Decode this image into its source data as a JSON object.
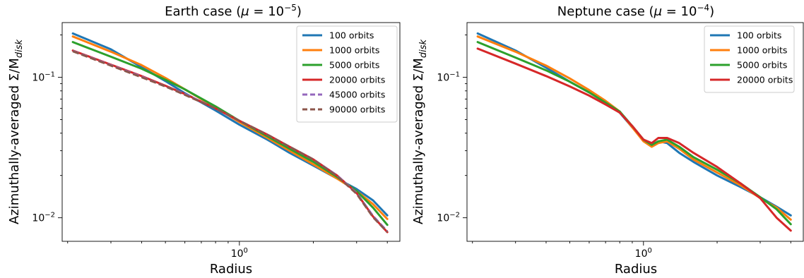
{
  "chart_data": [
    {
      "type": "line",
      "title": "Earth case (μ = 10⁻⁵)",
      "title_main": "Earth case (",
      "title_mu": "μ",
      "title_eq": " = 10",
      "title_exp": "−5",
      "title_end": ")",
      "xlabel": "Radius",
      "ylabel": "Azimuthally-averaged Σ/M",
      "ylabel_sub": "disk",
      "xscale": "log",
      "yscale": "log",
      "xlim": [
        0.19,
        4.5
      ],
      "ylim": [
        0.0068,
        0.245
      ],
      "xticks": [
        {
          "value": 1,
          "label": "10",
          "exp": "0"
        }
      ],
      "yticks": [
        {
          "value": 0.01,
          "label": "10",
          "exp": "−2"
        },
        {
          "value": 0.1,
          "label": "10",
          "exp": "−1"
        }
      ],
      "legend_position": "top-right",
      "series": [
        {
          "name": "100 orbits",
          "color": "#1f77b4",
          "dash": "solid",
          "x": [
            0.21,
            0.3,
            0.4,
            0.5,
            0.6,
            0.8,
            1.0,
            1.3,
            1.6,
            2.0,
            2.5,
            3.0,
            3.5,
            4.0
          ],
          "y": [
            0.205,
            0.158,
            0.118,
            0.094,
            0.077,
            0.058,
            0.046,
            0.036,
            0.029,
            0.0235,
            0.019,
            0.016,
            0.0133,
            0.0104
          ]
        },
        {
          "name": "1000 orbits",
          "color": "#ff7f0e",
          "dash": "solid",
          "x": [
            0.21,
            0.3,
            0.4,
            0.5,
            0.6,
            0.8,
            1.0,
            1.3,
            1.6,
            2.0,
            2.5,
            3.0,
            3.5,
            4.0
          ],
          "y": [
            0.195,
            0.152,
            0.122,
            0.099,
            0.082,
            0.061,
            0.048,
            0.037,
            0.03,
            0.024,
            0.019,
            0.0155,
            0.0125,
            0.0098
          ]
        },
        {
          "name": "5000 orbits",
          "color": "#2ca02c",
          "dash": "solid",
          "x": [
            0.21,
            0.3,
            0.4,
            0.5,
            0.6,
            0.8,
            1.0,
            1.3,
            1.6,
            2.0,
            2.5,
            3.0,
            3.5,
            4.0
          ],
          "y": [
            0.178,
            0.14,
            0.115,
            0.096,
            0.082,
            0.062,
            0.049,
            0.038,
            0.031,
            0.025,
            0.0195,
            0.0155,
            0.0118,
            0.0089
          ]
        },
        {
          "name": "20000 orbits",
          "color": "#d62728",
          "dash": "solid",
          "x": [
            0.21,
            0.3,
            0.4,
            0.5,
            0.6,
            0.8,
            1.0,
            1.3,
            1.6,
            2.0,
            2.5,
            3.0,
            3.5,
            4.0
          ],
          "y": [
            0.155,
            0.123,
            0.102,
            0.087,
            0.076,
            0.06,
            0.049,
            0.039,
            0.032,
            0.026,
            0.02,
            0.015,
            0.0102,
            0.0079
          ]
        },
        {
          "name": "45000 orbits",
          "color": "#9467bd",
          "dash": "dashed",
          "x": [
            0.21,
            0.3,
            0.4,
            0.5,
            0.6,
            0.8,
            1.0,
            1.3,
            1.6,
            2.0,
            2.5,
            3.0,
            3.5,
            4.0
          ],
          "y": [
            0.154,
            0.122,
            0.101,
            0.086,
            0.076,
            0.06,
            0.049,
            0.039,
            0.032,
            0.026,
            0.02,
            0.015,
            0.0103,
            0.008
          ]
        },
        {
          "name": "90000 orbits",
          "color": "#8c564b",
          "dash": "dashed",
          "x": [
            0.21,
            0.3,
            0.4,
            0.5,
            0.6,
            0.8,
            1.0,
            1.3,
            1.6,
            2.0,
            2.5,
            3.0,
            3.5,
            4.0
          ],
          "y": [
            0.153,
            0.121,
            0.1,
            0.086,
            0.075,
            0.06,
            0.049,
            0.039,
            0.032,
            0.026,
            0.0198,
            0.0148,
            0.0101,
            0.0079
          ]
        }
      ]
    },
    {
      "type": "line",
      "title": "Neptune case (μ = 10⁻⁴)",
      "title_main": "Neptune case (",
      "title_mu": "μ",
      "title_eq": " = 10",
      "title_exp": "−4",
      "title_end": ")",
      "xlabel": "Radius",
      "ylabel": "Azimuthally-averaged Σ/M",
      "ylabel_sub": "disk",
      "xscale": "log",
      "yscale": "log",
      "xlim": [
        0.19,
        4.5
      ],
      "ylim": [
        0.0068,
        0.245
      ],
      "xticks": [
        {
          "value": 1,
          "label": "10",
          "exp": "0"
        }
      ],
      "yticks": [
        {
          "value": 0.01,
          "label": "10",
          "exp": "−2"
        },
        {
          "value": 0.1,
          "label": "10",
          "exp": "−1"
        }
      ],
      "legend_position": "top-right",
      "series": [
        {
          "name": "100 orbits",
          "color": "#1f77b4",
          "dash": "solid",
          "x": [
            0.21,
            0.3,
            0.4,
            0.5,
            0.6,
            0.7,
            0.8,
            0.9,
            1.0,
            1.08,
            1.15,
            1.25,
            1.4,
            1.6,
            2.0,
            2.5,
            3.0,
            3.5,
            4.0
          ],
          "y": [
            0.205,
            0.155,
            0.117,
            0.093,
            0.078,
            0.066,
            0.056,
            0.044,
            0.036,
            0.033,
            0.035,
            0.034,
            0.029,
            0.025,
            0.02,
            0.0165,
            0.014,
            0.012,
            0.0104
          ]
        },
        {
          "name": "1000 orbits",
          "color": "#ff7f0e",
          "dash": "solid",
          "x": [
            0.21,
            0.3,
            0.4,
            0.5,
            0.6,
            0.7,
            0.8,
            0.9,
            1.0,
            1.08,
            1.15,
            1.25,
            1.4,
            1.6,
            2.0,
            2.5,
            3.0,
            3.5,
            4.0
          ],
          "y": [
            0.195,
            0.152,
            0.121,
            0.098,
            0.081,
            0.068,
            0.057,
            0.044,
            0.035,
            0.032,
            0.034,
            0.035,
            0.031,
            0.026,
            0.021,
            0.017,
            0.0138,
            0.0118,
            0.0097
          ]
        },
        {
          "name": "5000 orbits",
          "color": "#2ca02c",
          "dash": "solid",
          "x": [
            0.21,
            0.3,
            0.4,
            0.5,
            0.6,
            0.7,
            0.8,
            0.9,
            1.0,
            1.08,
            1.15,
            1.25,
            1.4,
            1.6,
            2.0,
            2.5,
            3.0,
            3.5,
            4.0
          ],
          "y": [
            0.178,
            0.138,
            0.112,
            0.093,
            0.078,
            0.066,
            0.057,
            0.045,
            0.036,
            0.033,
            0.035,
            0.036,
            0.032,
            0.027,
            0.022,
            0.0175,
            0.014,
            0.0115,
            0.009
          ]
        },
        {
          "name": "20000 orbits",
          "color": "#d62728",
          "dash": "solid",
          "x": [
            0.21,
            0.3,
            0.4,
            0.5,
            0.6,
            0.7,
            0.8,
            0.9,
            1.0,
            1.08,
            1.15,
            1.25,
            1.4,
            1.6,
            2.0,
            2.5,
            3.0,
            3.5,
            4.0
          ],
          "y": [
            0.16,
            0.125,
            0.102,
            0.086,
            0.074,
            0.064,
            0.056,
            0.045,
            0.036,
            0.034,
            0.037,
            0.037,
            0.034,
            0.029,
            0.023,
            0.0175,
            0.0138,
            0.01,
            0.0081
          ]
        }
      ]
    }
  ]
}
